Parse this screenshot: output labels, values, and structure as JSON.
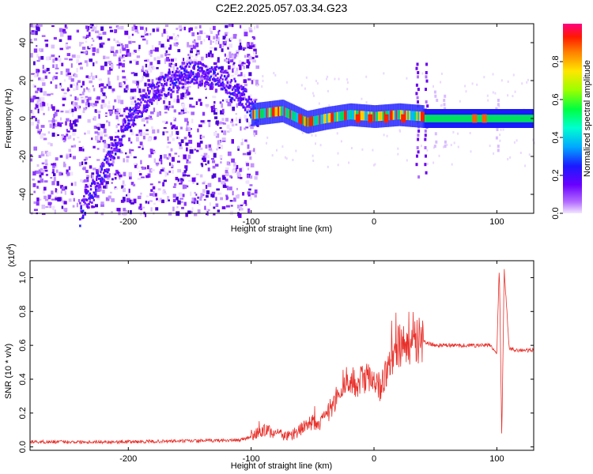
{
  "title": "C2E2.2025.057.03.34.G23",
  "colors": {
    "snr_line": "#e8302a",
    "spec_bg": "#ffffff"
  },
  "chart_data": [
    {
      "type": "heatmap",
      "xlabel": "Height of straight line (km)",
      "ylabel": "Frequency (Hz)",
      "xlim": [
        -280,
        130
      ],
      "ylim": [
        -50,
        50
      ],
      "xticks": [
        -200,
        -100,
        0,
        100
      ],
      "yticks": [
        -40,
        -20,
        0,
        20,
        40
      ],
      "colorbar": {
        "label": "Normalized spectral amplitude",
        "range": [
          0,
          1
        ],
        "ticks": [
          "0.0",
          "0.2",
          "0.4",
          "0.6",
          "0.8"
        ],
        "colormap": "rainbow (violet to red)"
      },
      "features": {
        "noise_region_km": [
          -280,
          -100
        ],
        "drift_track_km_hz": [
          [
            -240,
            -50
          ],
          [
            -215,
            -20
          ],
          [
            -200,
            0
          ],
          [
            -180,
            15
          ],
          [
            -150,
            25
          ],
          [
            -125,
            22
          ],
          [
            -105,
            10
          ],
          [
            -95,
            2
          ]
        ],
        "carrier_track_km_hz": [
          [
            -100,
            2
          ],
          [
            -75,
            4
          ],
          [
            -55,
            -2
          ],
          [
            -40,
            0
          ],
          [
            -20,
            2
          ],
          [
            0,
            1
          ],
          [
            20,
            2
          ],
          [
            40,
            1
          ],
          [
            80,
            0
          ],
          [
            100,
            0
          ],
          [
            130,
            0
          ]
        ],
        "vertical_artifacts_km": [
          35,
          42,
          50,
          57,
          100
        ]
      }
    },
    {
      "type": "line",
      "xlabel": "Height of straight line (km)",
      "ylabel": "SNR (10 * v/v)",
      "y_multiplier": "(x10",
      "y_exponent": "4",
      "xlim": [
        -280,
        130
      ],
      "ylim": [
        -0.02,
        1.1
      ],
      "xticks": [
        -200,
        -100,
        0,
        100
      ],
      "yticks": [
        "0.0",
        "0.2",
        "0.4",
        "0.6",
        "0.8",
        "1.0"
      ],
      "series": [
        {
          "x": [
            -280,
            -250,
            -200,
            -150,
            -110,
            -100,
            -90,
            -80,
            -70,
            -60,
            -50,
            -45,
            -40,
            -35,
            -30,
            -25,
            -20,
            -15,
            -10,
            -5,
            0,
            5,
            10,
            15,
            20,
            25,
            30,
            40,
            50,
            60,
            80,
            95,
            100,
            102,
            104,
            106,
            110,
            120,
            130
          ],
          "y": [
            0.03,
            0.03,
            0.03,
            0.035,
            0.04,
            0.06,
            0.1,
            0.08,
            0.06,
            0.1,
            0.15,
            0.12,
            0.18,
            0.22,
            0.3,
            0.4,
            0.38,
            0.35,
            0.4,
            0.42,
            0.42,
            0.35,
            0.45,
            0.5,
            0.58,
            0.6,
            0.62,
            0.62,
            0.6,
            0.6,
            0.6,
            0.6,
            0.55,
            1.08,
            0.05,
            1.05,
            0.58,
            0.57,
            0.57
          ]
        }
      ]
    }
  ]
}
